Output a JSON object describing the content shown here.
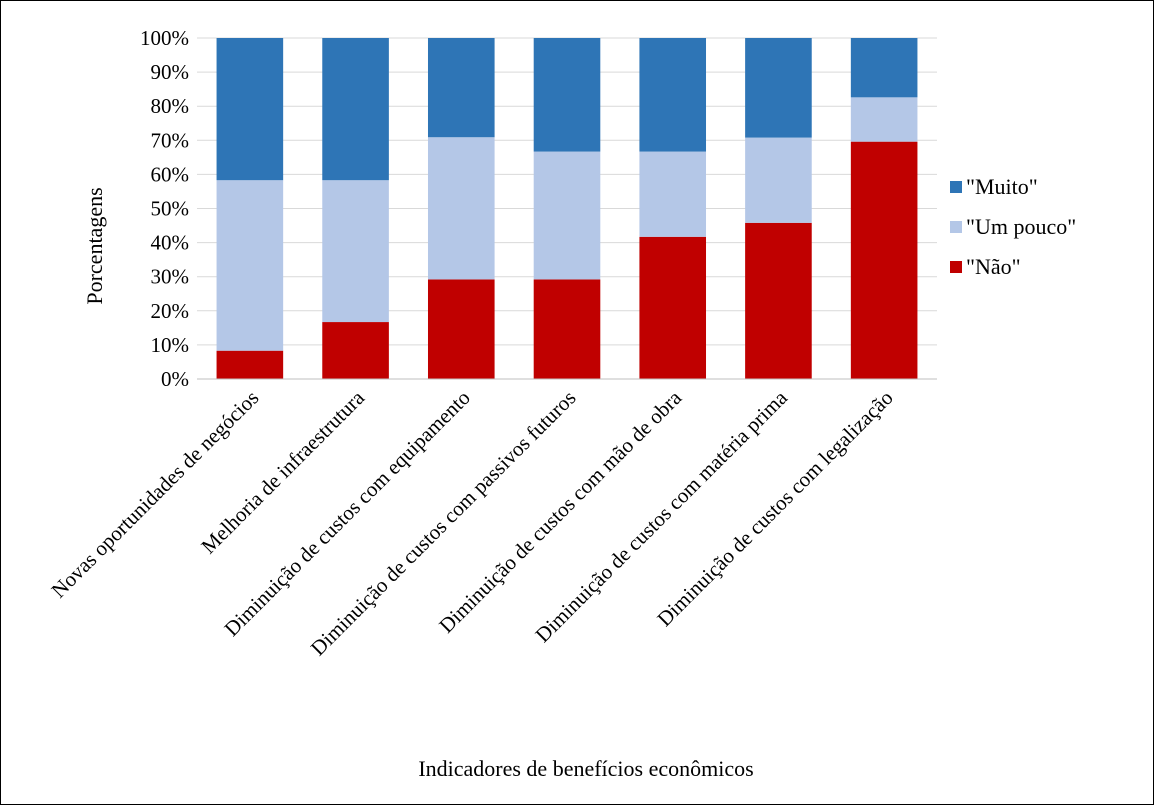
{
  "chart_data": {
    "type": "bar",
    "stacked": true,
    "stack_mode": "percent",
    "title": "",
    "xlabel": "Indicadores de benefícios econômicos",
    "ylabel": "Porcentagens",
    "ylim": [
      0,
      100
    ],
    "yticks": [
      "0%",
      "10%",
      "20%",
      "30%",
      "40%",
      "50%",
      "60%",
      "70%",
      "80%",
      "90%",
      "100%"
    ],
    "grid": true,
    "legend_position": "right",
    "categories": [
      "Novas oportunidades de negócios",
      "Melhoria de infraestrutura",
      "Diminuição de custos com equipamento",
      "Diminuição de custos com passivos futuros",
      "Diminuição de custos com mão de obra",
      "Diminuição de custos com matéria prima",
      "Diminuição de custos com legalização"
    ],
    "series": [
      {
        "name": "\"Não\"",
        "color": "#C00000",
        "values": [
          8.3,
          16.7,
          29.2,
          29.2,
          41.7,
          45.8,
          69.6
        ]
      },
      {
        "name": "\"Um pouco\"",
        "color": "#B4C7E7",
        "values": [
          50.0,
          41.6,
          41.7,
          37.5,
          25.0,
          25.0,
          13.0
        ]
      },
      {
        "name": "\"Muito\"",
        "color": "#2E75B6",
        "values": [
          41.7,
          41.7,
          29.1,
          33.3,
          33.3,
          29.2,
          17.4
        ]
      }
    ],
    "legend_order": [
      "\"Muito\"",
      "\"Um pouco\"",
      "\"Não\""
    ]
  }
}
